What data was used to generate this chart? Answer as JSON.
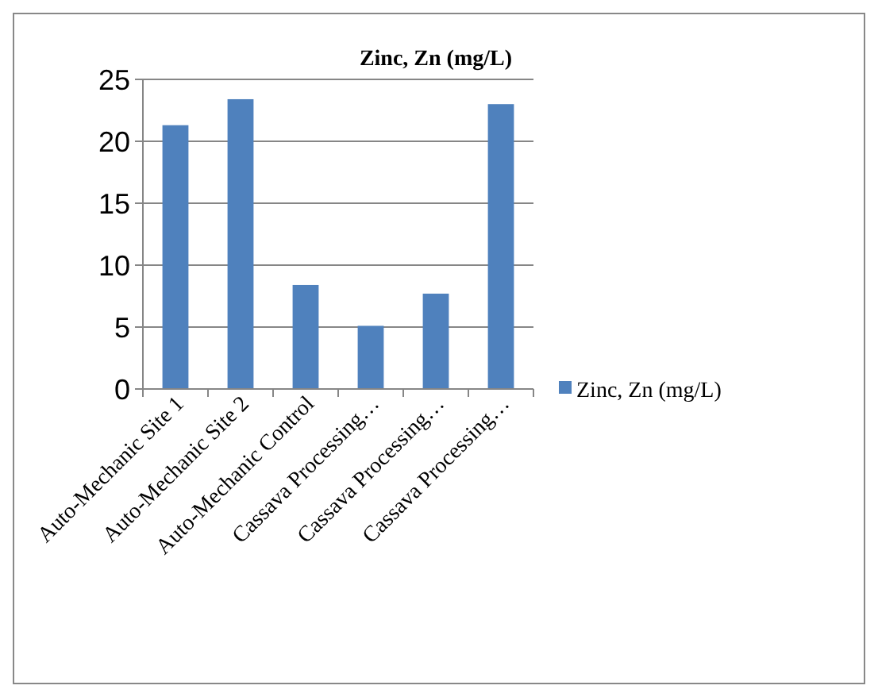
{
  "chart_data": {
    "type": "bar",
    "title": "Zinc, Zn (mg/L)",
    "categories": [
      "Auto-Mechanic Site 1",
      "Auto-Mechanic Site 2",
      "Auto-Mechanic Control",
      "Cassava Processing…",
      "Cassava Processing…",
      "Cassava Processing…"
    ],
    "series": [
      {
        "name": "Zinc, Zn (mg/L)",
        "color": "#4f81bd",
        "values": [
          21.3,
          23.4,
          8.4,
          5.1,
          7.7,
          23.0
        ]
      }
    ],
    "ylim": [
      0,
      25
    ],
    "yticks": [
      0,
      5,
      10,
      15,
      20,
      25
    ],
    "grid": "y",
    "legend": "right"
  }
}
